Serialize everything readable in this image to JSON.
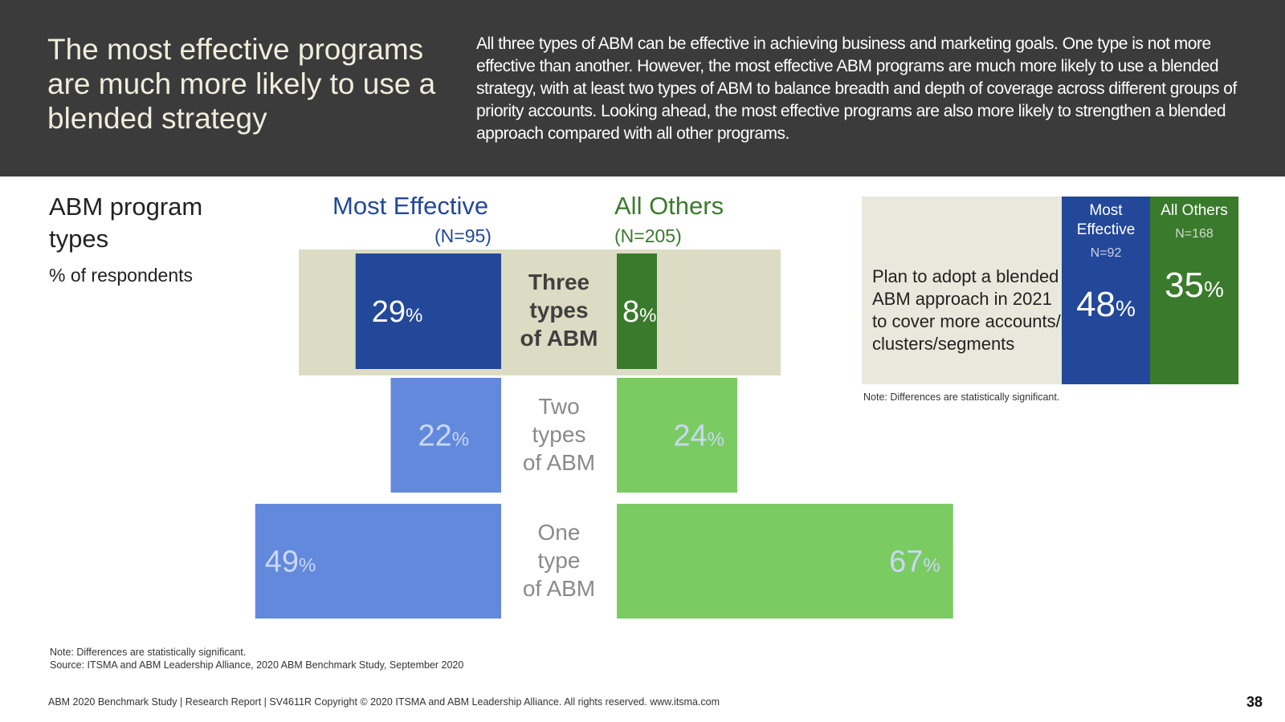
{
  "header": {
    "title": "The most effective programs are much more likely to use a blended strategy",
    "description": "All three types of ABM can be effective in achieving business and marketing goals. One type is not more effective than another. However, the most effective ABM programs are much more likely to use a blended strategy, with at least two types of ABM to balance breadth and depth of coverage across different groups of priority accounts. Looking ahead, the most effective programs are also more likely to strengthen a blended approach compared with all other programs."
  },
  "section": {
    "title": "ABM program types",
    "subtitle": "% of respondents"
  },
  "columns": {
    "most_effective": "Most Effective",
    "most_effective_n": "(N=95)",
    "all_others": "All Others",
    "all_others_n": "(N=205)"
  },
  "chart_data": {
    "type": "bar",
    "orientation": "horizontal-butterfly",
    "categories": [
      "Three types of ABM",
      "Two types of ABM",
      "One type of ABM"
    ],
    "category_lines": [
      [
        "Three",
        "types",
        "of ABM"
      ],
      [
        "Two",
        "types",
        "of ABM"
      ],
      [
        "One",
        "type",
        "of ABM"
      ]
    ],
    "unit": "%",
    "series": [
      {
        "name": "Most Effective",
        "values": [
          29,
          22,
          49
        ]
      },
      {
        "name": "All Others",
        "values": [
          8,
          24,
          67
        ]
      }
    ],
    "highlighted_category": "Three types of ABM",
    "colors": {
      "most_effective": "#23489a",
      "most_effective_light": "#6389dc",
      "all_others": "#3a7a2c",
      "all_others_light": "#7bcb63",
      "highlight_band": "#dcdcc4",
      "category_text_highlight": "#404040",
      "category_text": "#8a8a8a",
      "light_value_text": "#c9d8f4"
    }
  },
  "table": {
    "label": "Plan to adopt a blended ABM approach in 2021 to cover more accounts/ clusters/segments",
    "col1_head": "Most Effective",
    "col1_n": "N=92",
    "col1_value": "48",
    "col2_head": "All Others",
    "col2_n": "N=168",
    "col2_value": "35",
    "unit": "%",
    "note": "Note: Differences are statistically significant."
  },
  "notes": {
    "note": "Note: Differences are statistically significant.",
    "source": "Source: ITSMA and ABM Leadership Alliance, 2020 ABM Benchmark Study, September 2020"
  },
  "footer": {
    "text": "ABM 2020 Benchmark Study | Research Report | SV4611R Copyright © 2020 ITSMA and ABM Leadership Alliance. All rights reserved. www.itsma.com",
    "page": "38"
  }
}
